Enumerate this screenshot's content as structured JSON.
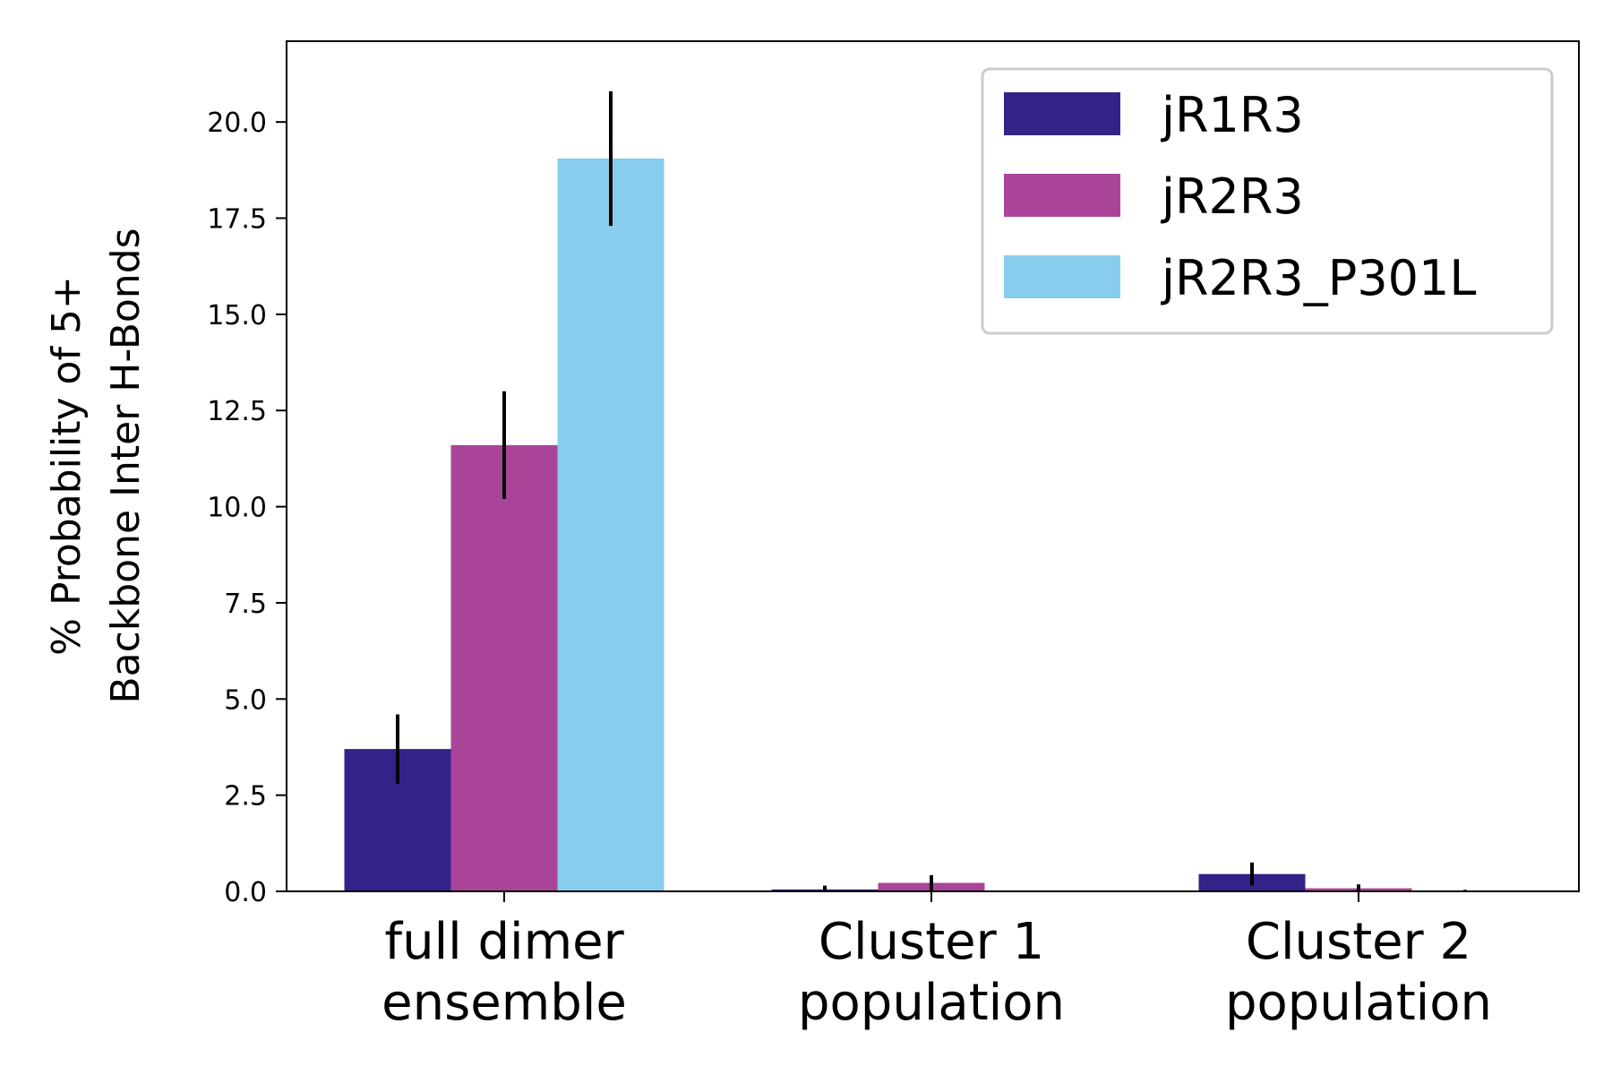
{
  "chart_data": {
    "type": "bar",
    "title": "",
    "xlabel": "",
    "ylabel": [
      "% Probability of 5+",
      "Backbone Inter H-Bonds"
    ],
    "categories": [
      [
        "full dimer",
        "ensemble"
      ],
      [
        "Cluster 1",
        "population"
      ],
      [
        "Cluster 2",
        "population"
      ]
    ],
    "series": [
      {
        "name": "jR1R3",
        "color": "#332288",
        "values": [
          3.7,
          0.05,
          0.45
        ],
        "errors": [
          0.9,
          0.1,
          0.3
        ]
      },
      {
        "name": "jR2R3",
        "color": "#AA4499",
        "values": [
          11.6,
          0.22,
          0.08
        ],
        "errors": [
          1.4,
          0.2,
          0.1
        ]
      },
      {
        "name": "jR2R3_P301L",
        "color": "#88CCEE",
        "values": [
          19.05,
          0.0,
          0.0
        ],
        "errors": [
          1.75,
          0.0,
          0.04
        ]
      }
    ],
    "ylim": [
      0,
      22.1
    ],
    "yticks": [
      "0.0",
      "2.5",
      "5.0",
      "7.5",
      "10.0",
      "12.5",
      "15.0",
      "17.5",
      "20.0"
    ],
    "legend_position": "top-right",
    "grid": false
  }
}
